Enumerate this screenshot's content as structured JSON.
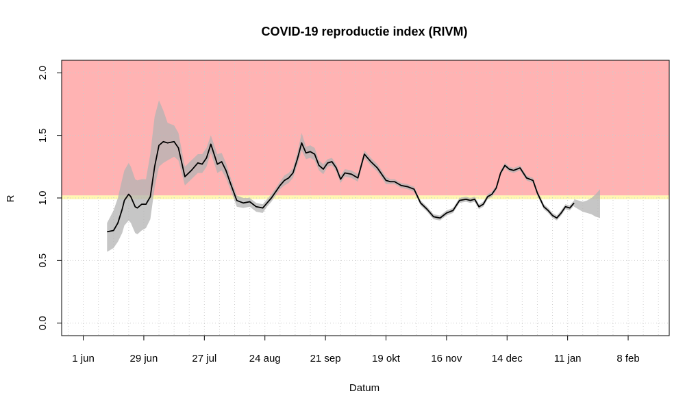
{
  "chart_data": {
    "type": "line",
    "title": "COVID-19 reproductie index (RIVM)",
    "xlabel": "Datum",
    "ylabel": "R",
    "ylim": [
      0,
      2
    ],
    "yticks": [
      0.0,
      0.5,
      1.0,
      1.5,
      2.0
    ],
    "ytick_labels": [
      "0.0",
      "0.5",
      "1.0",
      "1.5",
      "2.0"
    ],
    "xlim": [
      "2020-05-22",
      "2021-02-27"
    ],
    "xticks": [
      "2020-06-01",
      "2020-06-29",
      "2020-07-27",
      "2020-08-24",
      "2020-09-21",
      "2020-10-19",
      "2020-11-16",
      "2020-12-14",
      "2021-01-11",
      "2021-02-08"
    ],
    "xtick_labels": [
      "1 jun",
      "29 jun",
      "27 jul",
      "24 aug",
      "21 sep",
      "19 okt",
      "16 nov",
      "14 dec",
      "11 jan",
      "8 feb"
    ],
    "grid": true,
    "colors": {
      "above_threshold": "#ffb3b3",
      "threshold_band": "#fff7b0",
      "ci_band": "#b3b3b3",
      "line": "#000000",
      "grid": "#cccccc"
    },
    "threshold_band": [
      0.99,
      1.02
    ],
    "series": [
      {
        "x": [
          "2020-06-12",
          "2020-06-15",
          "2020-06-17",
          "2020-06-19",
          "2020-06-20",
          "2020-06-22",
          "2020-06-23",
          "2020-06-24",
          "2020-06-25",
          "2020-06-26",
          "2020-06-28",
          "2020-06-30",
          "2020-07-02",
          "2020-07-04",
          "2020-07-06",
          "2020-07-08",
          "2020-07-10",
          "2020-07-13",
          "2020-07-15",
          "2020-07-18",
          "2020-07-21",
          "2020-07-24",
          "2020-07-26",
          "2020-07-28",
          "2020-07-30",
          "2020-08-02",
          "2020-08-04",
          "2020-08-06",
          "2020-08-08",
          "2020-08-11",
          "2020-08-14",
          "2020-08-17",
          "2020-08-20",
          "2020-08-23",
          "2020-08-25",
          "2020-08-27",
          "2020-08-29",
          "2020-08-31",
          "2020-09-02",
          "2020-09-04",
          "2020-09-06",
          "2020-09-08",
          "2020-09-10",
          "2020-09-12",
          "2020-09-14",
          "2020-09-16",
          "2020-09-18",
          "2020-09-20",
          "2020-09-22",
          "2020-09-24",
          "2020-09-26",
          "2020-09-28",
          "2020-09-30",
          "2020-10-03",
          "2020-10-06",
          "2020-10-09",
          "2020-10-12",
          "2020-10-15",
          "2020-10-17",
          "2020-10-19",
          "2020-10-21",
          "2020-10-23",
          "2020-10-26",
          "2020-10-29",
          "2020-11-01",
          "2020-11-04",
          "2020-11-07",
          "2020-11-10",
          "2020-11-13",
          "2020-11-16",
          "2020-11-19",
          "2020-11-22",
          "2020-11-25",
          "2020-11-27",
          "2020-11-29",
          "2020-12-01",
          "2020-12-03",
          "2020-12-05",
          "2020-12-07",
          "2020-12-09",
          "2020-12-11",
          "2020-12-13",
          "2020-12-15",
          "2020-12-17",
          "2020-12-20",
          "2020-12-23",
          "2020-12-26",
          "2020-12-28",
          "2020-12-31",
          "2021-01-02",
          "2021-01-04",
          "2021-01-06",
          "2021-01-08",
          "2021-01-10",
          "2021-01-12",
          "2021-01-14"
        ],
        "y": [
          0.73,
          0.74,
          0.8,
          0.91,
          0.98,
          1.03,
          1.01,
          0.97,
          0.93,
          0.92,
          0.95,
          0.95,
          1.01,
          1.25,
          1.42,
          1.45,
          1.44,
          1.45,
          1.4,
          1.17,
          1.22,
          1.28,
          1.27,
          1.32,
          1.43,
          1.27,
          1.29,
          1.22,
          1.12,
          0.98,
          0.96,
          0.97,
          0.93,
          0.92,
          0.96,
          1.0,
          1.05,
          1.1,
          1.14,
          1.16,
          1.2,
          1.31,
          1.44,
          1.36,
          1.37,
          1.35,
          1.26,
          1.23,
          1.28,
          1.29,
          1.24,
          1.15,
          1.2,
          1.19,
          1.16,
          1.35,
          1.29,
          1.24,
          1.19,
          1.14,
          1.13,
          1.13,
          1.1,
          1.09,
          1.07,
          0.96,
          0.91,
          0.85,
          0.84,
          0.88,
          0.9,
          0.98,
          0.99,
          0.98,
          0.99,
          0.93,
          0.95,
          1.01,
          1.03,
          1.08,
          1.2,
          1.26,
          1.23,
          1.22,
          1.24,
          1.16,
          1.14,
          1.04,
          0.93,
          0.9,
          0.86,
          0.84,
          0.88,
          0.93,
          0.92,
          0.96
        ],
        "ci_upper": [
          0.8,
          0.9,
          1.0,
          1.15,
          1.22,
          1.28,
          1.25,
          1.2,
          1.15,
          1.14,
          1.15,
          1.15,
          1.35,
          1.65,
          1.78,
          1.7,
          1.6,
          1.58,
          1.52,
          1.25,
          1.3,
          1.35,
          1.35,
          1.4,
          1.5,
          1.35,
          1.36,
          1.28,
          1.17,
          1.02,
          1.0,
          1.0,
          0.96,
          0.95,
          0.99,
          1.03,
          1.08,
          1.13,
          1.18,
          1.2,
          1.24,
          1.36,
          1.52,
          1.41,
          1.42,
          1.4,
          1.3,
          1.27,
          1.31,
          1.32,
          1.27,
          1.18,
          1.23,
          1.22,
          1.19,
          1.38,
          1.32,
          1.27,
          1.22,
          1.17,
          1.15,
          1.15,
          1.12,
          1.11,
          1.09,
          0.98,
          0.93,
          0.87,
          0.86,
          0.9,
          0.92,
          1.0,
          1.01,
          1.0,
          1.01,
          0.95,
          0.97,
          1.03,
          1.05,
          1.1,
          1.22,
          1.28,
          1.25,
          1.24,
          1.26,
          1.18,
          1.16,
          1.06,
          0.95,
          0.92,
          0.88,
          0.86,
          0.9,
          0.95,
          0.94,
          0.98
        ],
        "ci_lower": [
          0.57,
          0.6,
          0.65,
          0.72,
          0.78,
          0.82,
          0.8,
          0.76,
          0.72,
          0.71,
          0.74,
          0.76,
          0.83,
          1.08,
          1.25,
          1.28,
          1.3,
          1.33,
          1.3,
          1.1,
          1.15,
          1.2,
          1.2,
          1.25,
          1.36,
          1.2,
          1.22,
          1.16,
          1.07,
          0.93,
          0.92,
          0.93,
          0.89,
          0.88,
          0.93,
          0.97,
          1.02,
          1.07,
          1.1,
          1.12,
          1.16,
          1.26,
          1.38,
          1.31,
          1.32,
          1.3,
          1.22,
          1.19,
          1.25,
          1.26,
          1.21,
          1.12,
          1.17,
          1.16,
          1.13,
          1.32,
          1.26,
          1.21,
          1.16,
          1.11,
          1.11,
          1.11,
          1.08,
          1.07,
          1.05,
          0.94,
          0.89,
          0.83,
          0.82,
          0.86,
          0.88,
          0.96,
          0.97,
          0.96,
          0.97,
          0.91,
          0.93,
          0.99,
          1.01,
          1.06,
          1.18,
          1.24,
          1.21,
          1.2,
          1.22,
          1.14,
          1.12,
          1.02,
          0.91,
          0.88,
          0.84,
          0.82,
          0.86,
          0.91,
          0.9,
          0.94
        ]
      }
    ],
    "ci_extension": {
      "x": [
        "2021-01-14",
        "2021-01-16",
        "2021-01-18",
        "2021-01-20",
        "2021-01-22",
        "2021-01-24",
        "2021-01-26"
      ],
      "upper": [
        0.99,
        0.98,
        0.97,
        0.98,
        1.0,
        1.03,
        1.07
      ],
      "lower": [
        0.93,
        0.91,
        0.89,
        0.88,
        0.87,
        0.85,
        0.84
      ]
    }
  }
}
